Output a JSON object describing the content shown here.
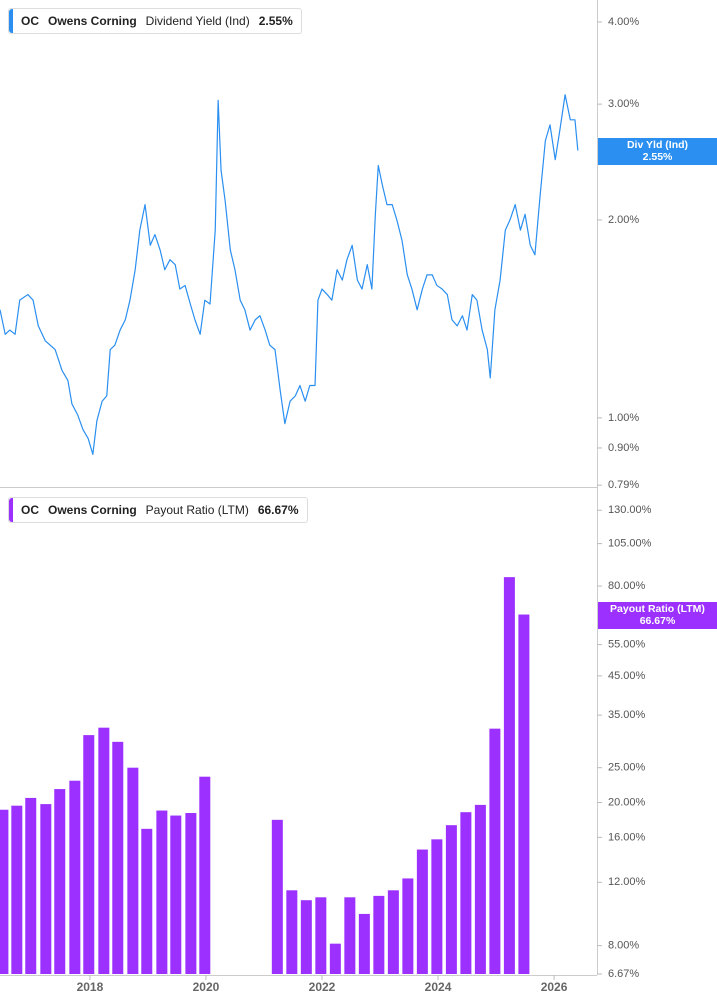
{
  "chart_data": [
    {
      "type": "line",
      "ticker": "OC",
      "company": "Owens Corning",
      "series_name": "Dividend Yield (Ind)",
      "last_value_label": "2.55%",
      "badge_label": "Div Yld (Ind)",
      "color": "#2a8ff0",
      "log_scale": true,
      "xlim": [
        2016.45,
        2026.74
      ],
      "ylim": [
        0.785,
        4.32
      ],
      "yticks": [
        {
          "value": 4,
          "label": "4.00%"
        },
        {
          "value": 3,
          "label": "3.00%"
        },
        {
          "value": 2,
          "label": "2.00%"
        },
        {
          "value": 1,
          "label": "1.00%"
        },
        {
          "value": 0.9,
          "label": "0.90%"
        },
        {
          "value": 0.79,
          "label": "0.79%"
        }
      ],
      "x": [
        2016.45,
        2016.54,
        2016.62,
        2016.71,
        2016.79,
        2016.93,
        2017.02,
        2017.11,
        2017.23,
        2017.4,
        2017.52,
        2017.62,
        2017.69,
        2017.79,
        2017.88,
        2017.97,
        2018.05,
        2018.12,
        2018.21,
        2018.29,
        2018.35,
        2018.43,
        2018.52,
        2018.61,
        2018.69,
        2018.78,
        2018.86,
        2018.95,
        2019.04,
        2019.12,
        2019.21,
        2019.29,
        2019.38,
        2019.47,
        2019.55,
        2019.64,
        2019.73,
        2019.81,
        2019.9,
        2019.98,
        2020.07,
        2020.16,
        2020.21,
        2020.26,
        2020.33,
        2020.42,
        2020.5,
        2020.59,
        2020.67,
        2020.76,
        2020.85,
        2020.93,
        2021.02,
        2021.1,
        2021.19,
        2021.28,
        2021.36,
        2021.45,
        2021.54,
        2021.62,
        2021.71,
        2021.79,
        2021.88,
        2021.93,
        2022.0,
        2022.09,
        2022.17,
        2022.26,
        2022.35,
        2022.43,
        2022.52,
        2022.61,
        2022.69,
        2022.78,
        2022.86,
        2022.92,
        2022.97,
        2023.04,
        2023.12,
        2023.21,
        2023.29,
        2023.38,
        2023.47,
        2023.55,
        2023.64,
        2023.73,
        2023.81,
        2023.9,
        2023.98,
        2024.07,
        2024.16,
        2024.24,
        2024.33,
        2024.42,
        2024.5,
        2024.59,
        2024.67,
        2024.76,
        2024.85,
        2024.9,
        2024.98,
        2025.07,
        2025.16,
        2025.24,
        2025.33,
        2025.42,
        2025.5,
        2025.59,
        2025.67,
        2025.76,
        2025.85,
        2025.93,
        2026.02,
        2026.1,
        2026.19,
        2026.28,
        2026.36,
        2026.41
      ],
      "values": [
        1.46,
        1.34,
        1.36,
        1.34,
        1.51,
        1.54,
        1.51,
        1.38,
        1.31,
        1.27,
        1.18,
        1.14,
        1.05,
        1.01,
        0.96,
        0.93,
        0.88,
        0.99,
        1.06,
        1.08,
        1.27,
        1.29,
        1.36,
        1.41,
        1.51,
        1.68,
        1.93,
        2.11,
        1.83,
        1.9,
        1.8,
        1.68,
        1.74,
        1.71,
        1.57,
        1.59,
        1.49,
        1.41,
        1.34,
        1.51,
        1.49,
        1.93,
        3.04,
        2.38,
        2.14,
        1.8,
        1.68,
        1.51,
        1.46,
        1.36,
        1.41,
        1.43,
        1.36,
        1.29,
        1.27,
        1.1,
        0.98,
        1.06,
        1.08,
        1.12,
        1.06,
        1.12,
        1.12,
        1.51,
        1.57,
        1.54,
        1.51,
        1.68,
        1.62,
        1.74,
        1.83,
        1.62,
        1.57,
        1.71,
        1.57,
        2.04,
        2.42,
        2.26,
        2.11,
        2.11,
        2.0,
        1.86,
        1.65,
        1.57,
        1.46,
        1.57,
        1.65,
        1.65,
        1.59,
        1.57,
        1.54,
        1.41,
        1.38,
        1.43,
        1.36,
        1.54,
        1.51,
        1.36,
        1.27,
        1.15,
        1.46,
        1.62,
        1.93,
        2.0,
        2.11,
        1.93,
        2.04,
        1.83,
        1.77,
        2.18,
        2.64,
        2.79,
        2.47,
        2.74,
        3.1,
        2.84,
        2.84,
        2.55
      ]
    },
    {
      "type": "bar",
      "ticker": "OC",
      "company": "Owens Corning",
      "series_name": "Payout Ratio (LTM)",
      "last_value_label": "66.67%",
      "badge_label": "Payout Ratio (LTM)",
      "color": "#9b30ff",
      "log_scale": true,
      "xlim": [
        2016.45,
        2026.74
      ],
      "ylim": [
        6.67,
        148
      ],
      "xticks": [
        2018,
        2020,
        2022,
        2024,
        2026
      ],
      "yticks": [
        {
          "value": 130,
          "label": "130.00%"
        },
        {
          "value": 105,
          "label": "105.00%"
        },
        {
          "value": 80,
          "label": "80.00%"
        },
        {
          "value": 55,
          "label": "55.00%"
        },
        {
          "value": 45,
          "label": "45.00%"
        },
        {
          "value": 35,
          "label": "35.00%"
        },
        {
          "value": 25,
          "label": "25.00%"
        },
        {
          "value": 20,
          "label": "20.00%"
        },
        {
          "value": 16,
          "label": "16.00%"
        },
        {
          "value": 12,
          "label": "12.00%"
        },
        {
          "value": 8,
          "label": "8.00%"
        },
        {
          "value": 6.67,
          "label": "6.67%"
        }
      ],
      "x": [
        2016.5,
        2016.74,
        2016.98,
        2017.24,
        2017.48,
        2017.74,
        2017.98,
        2018.24,
        2018.48,
        2018.74,
        2018.98,
        2019.24,
        2019.48,
        2019.74,
        2019.98,
        2021.23,
        2021.48,
        2021.73,
        2021.98,
        2022.23,
        2022.48,
        2022.73,
        2022.98,
        2023.23,
        2023.48,
        2023.73,
        2023.98,
        2024.23,
        2024.48,
        2024.73,
        2024.98,
        2025.23,
        2025.48
      ],
      "values": [
        19.1,
        19.6,
        20.6,
        19.8,
        21.8,
        23.0,
        30.8,
        32.3,
        29.5,
        25.0,
        16.9,
        19.0,
        18.4,
        18.7,
        23.6,
        17.9,
        11.4,
        10.7,
        10.9,
        8.1,
        10.9,
        9.8,
        11.0,
        11.4,
        12.3,
        14.8,
        15.8,
        17.3,
        18.8,
        19.7,
        32.1,
        84.7,
        66.67
      ]
    }
  ]
}
